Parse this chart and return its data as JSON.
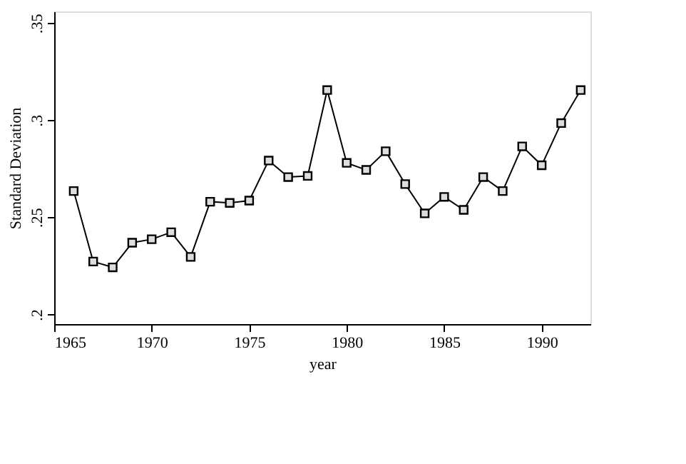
{
  "chart_data": {
    "type": "line",
    "xlabel": "year",
    "ylabel": "Standard Deviation",
    "x": [
      1966,
      1967,
      1968,
      1969,
      1970,
      1971,
      1972,
      1973,
      1974,
      1975,
      1976,
      1977,
      1978,
      1979,
      1980,
      1981,
      1982,
      1983,
      1984,
      1985,
      1986,
      1987,
      1988,
      1989,
      1990,
      1991,
      1992
    ],
    "series": [
      {
        "color": "#000000",
        "values": [
          0.2635,
          0.2272,
          0.2242,
          0.2369,
          0.2387,
          0.2423,
          0.2296,
          0.258,
          0.2574,
          0.2586,
          0.2792,
          0.2707,
          0.2713,
          0.3155,
          0.278,
          0.2744,
          0.284,
          0.2671,
          0.252,
          0.2605,
          0.2538,
          0.2707,
          0.2635,
          0.2865,
          0.2768,
          0.2985,
          0.3155
        ]
      }
    ],
    "xlim": [
      1965,
      1992.5
    ],
    "xticks": [
      1965,
      1970,
      1975,
      1980,
      1985,
      1990
    ],
    "ylim": [
      0.195,
      0.356
    ],
    "yticks": [
      {
        "value": 0.2,
        "label": ".2"
      },
      {
        "value": 0.25,
        "label": ".25"
      },
      {
        "value": 0.3,
        "label": ".3"
      },
      {
        "value": 0.35,
        "label": ".35"
      }
    ],
    "marker": "square",
    "line_style": "solid",
    "grid": false
  }
}
